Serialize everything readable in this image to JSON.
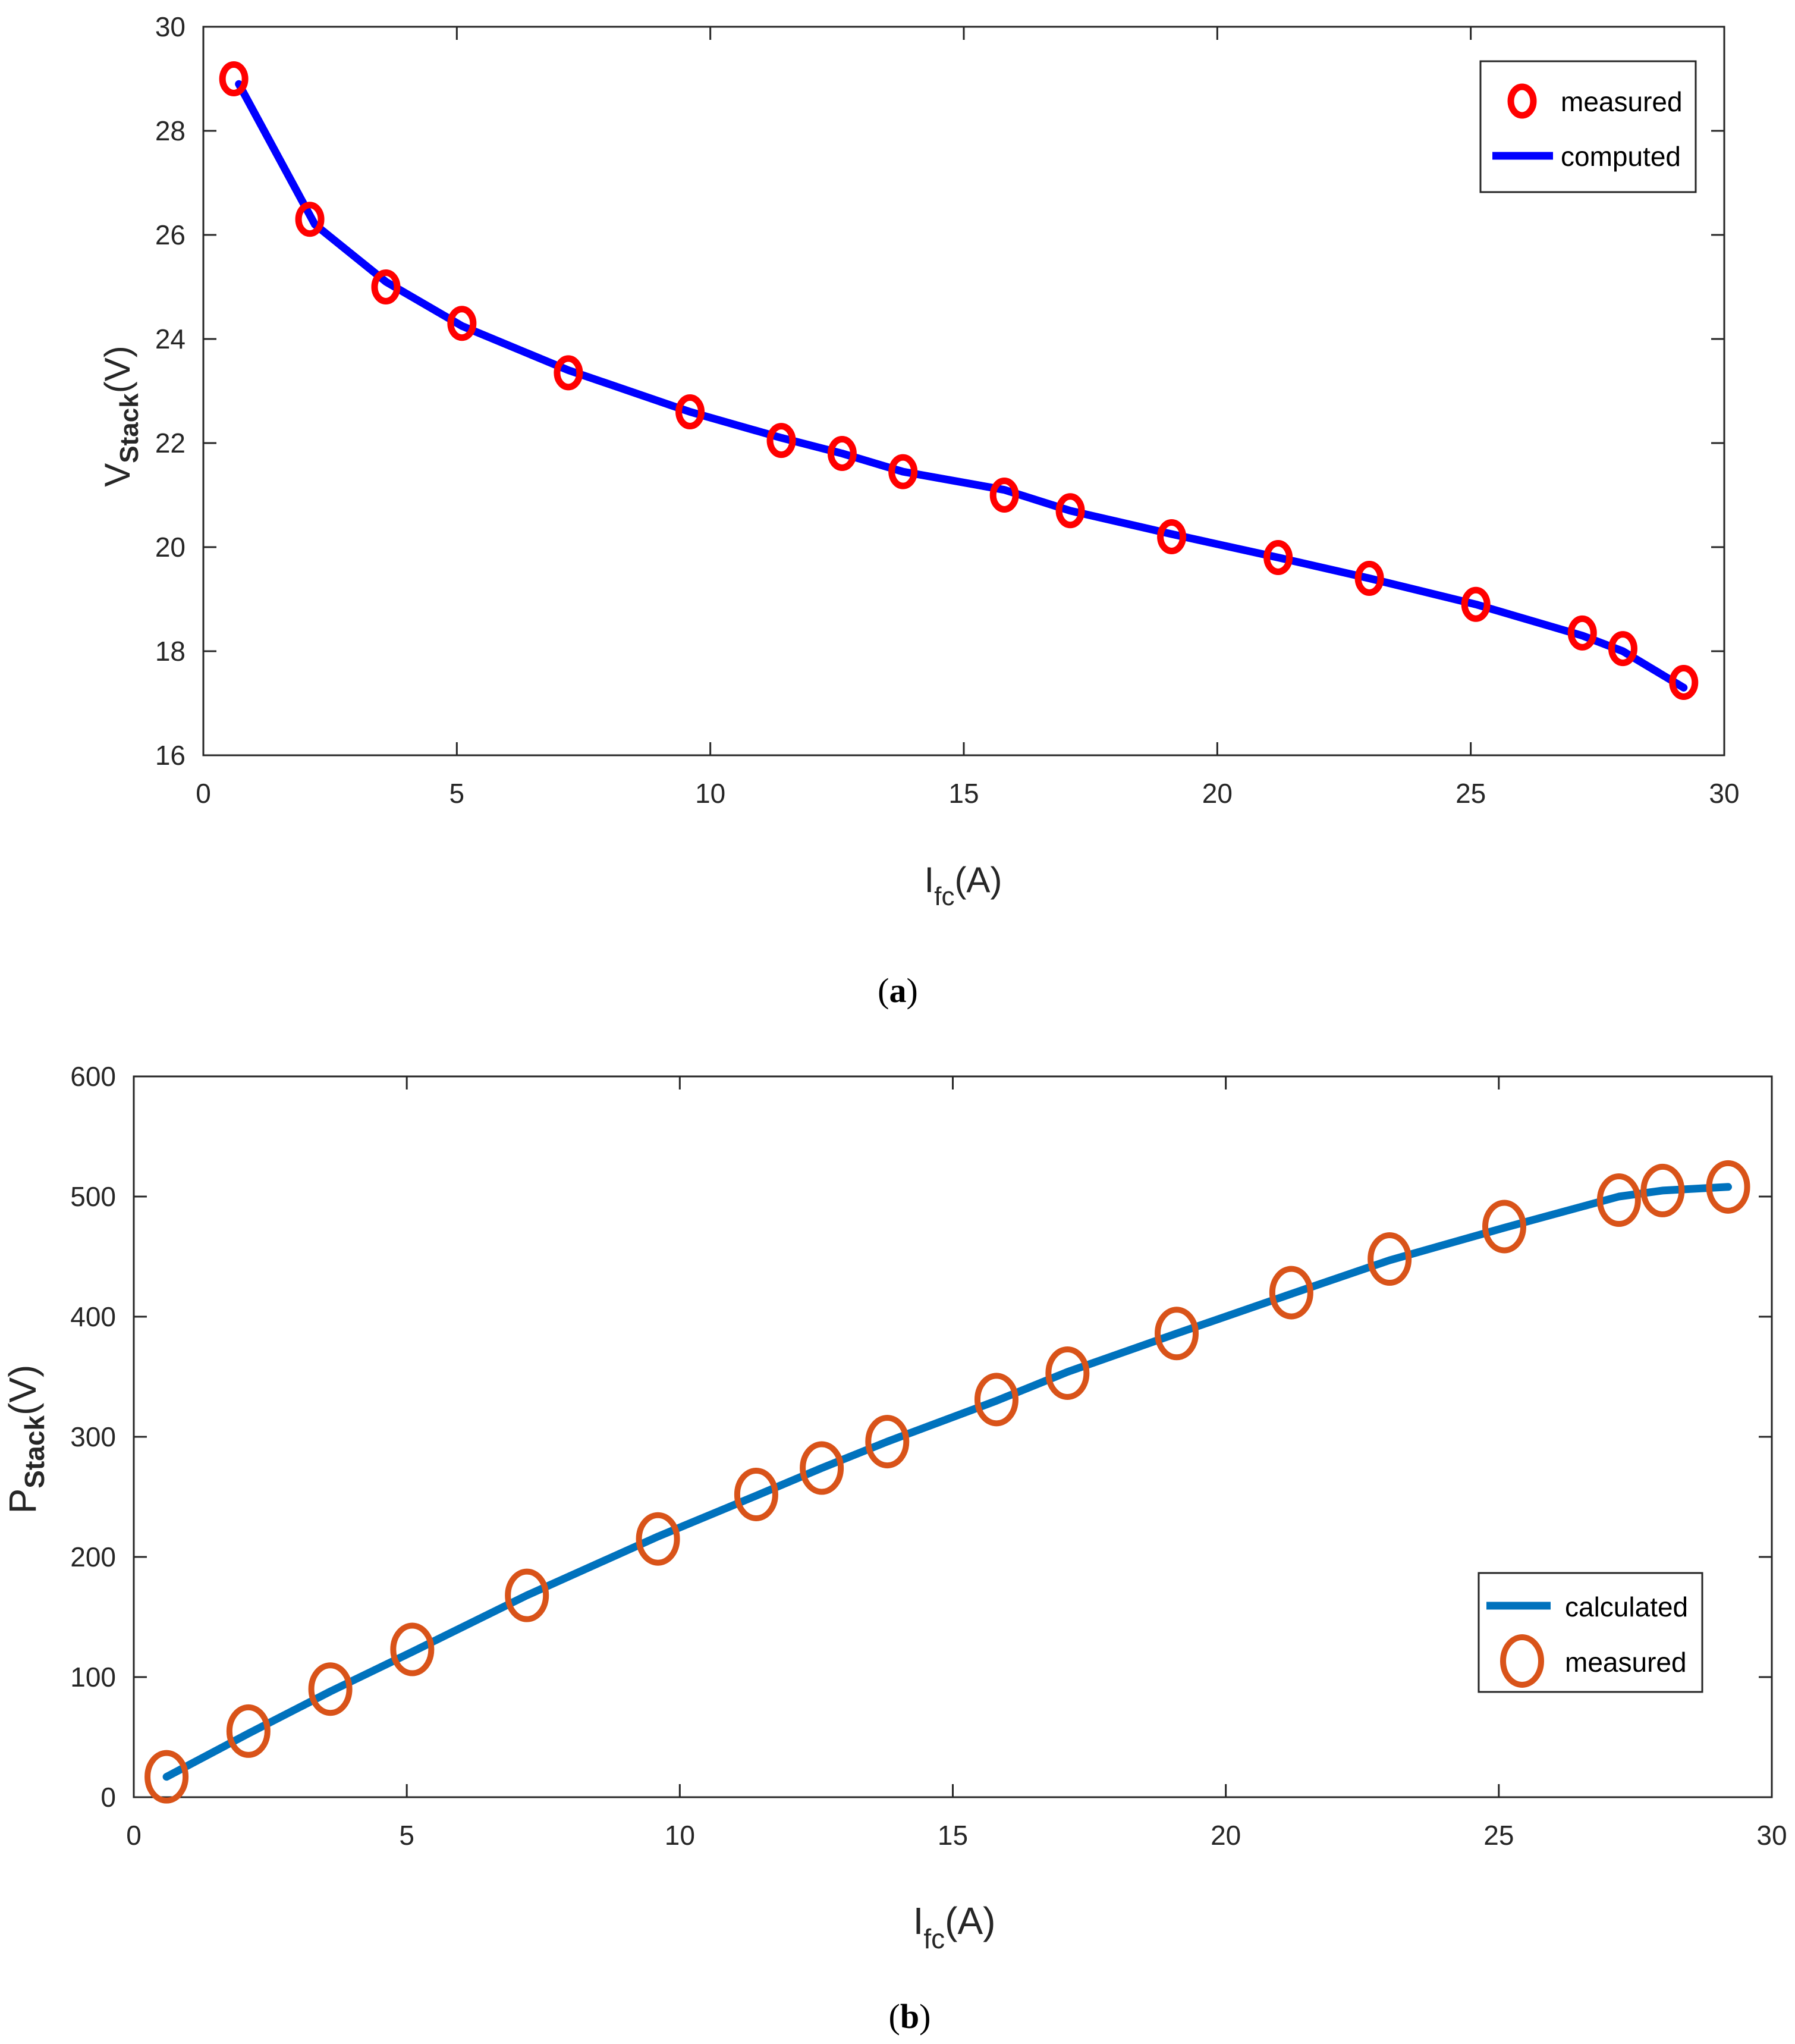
{
  "chart_data": [
    {
      "type": "line",
      "panel_label": {
        "open": "(",
        "letter": "a",
        "close": ")"
      },
      "title": "",
      "xlabel": {
        "main": "I",
        "sub": "fc",
        "unit": "(A)"
      },
      "ylabel": {
        "main": "V",
        "sub": "Stack",
        "unit": "(V)"
      },
      "xlim": [
        0,
        30
      ],
      "ylim": [
        16,
        30
      ],
      "xticks": [
        0,
        5,
        10,
        15,
        20,
        25,
        30
      ],
      "yticks": [
        16,
        18,
        20,
        22,
        24,
        26,
        28,
        30
      ],
      "grid": false,
      "legend_position": "top-right",
      "colors": {
        "measured": "#ff0000",
        "computed": "#0000ff"
      },
      "series": [
        {
          "name": "measured",
          "style": "markers",
          "x": [
            0.6,
            2.1,
            3.6,
            5.1,
            7.2,
            9.6,
            11.4,
            12.6,
            13.8,
            15.8,
            17.1,
            19.1,
            21.2,
            23.0,
            25.1,
            27.2,
            28.0,
            29.2
          ],
          "y": [
            29.0,
            26.3,
            25.0,
            24.3,
            23.35,
            22.6,
            22.05,
            21.8,
            21.45,
            21.0,
            20.7,
            20.2,
            19.8,
            19.4,
            18.9,
            18.35,
            18.05,
            17.4
          ]
        },
        {
          "name": "computed",
          "style": "line",
          "x": [
            0.7,
            2.2,
            3.6,
            5.1,
            7.2,
            9.6,
            11.4,
            12.6,
            13.8,
            15.8,
            17.1,
            19.1,
            21.2,
            23.0,
            25.1,
            27.2,
            28.0,
            29.2
          ],
          "y": [
            28.9,
            26.2,
            25.1,
            24.25,
            23.4,
            22.6,
            22.1,
            21.8,
            21.45,
            21.1,
            20.7,
            20.25,
            19.8,
            19.4,
            18.9,
            18.3,
            18.0,
            17.3
          ]
        }
      ]
    },
    {
      "type": "line",
      "panel_label": {
        "open": "(",
        "letter": "b",
        "close": ")"
      },
      "title": "",
      "xlabel": {
        "main": "I",
        "sub": "fc",
        "unit": "(A)"
      },
      "ylabel": {
        "main": "P",
        "sub": "Stack",
        "unit": "(V)"
      },
      "xlim": [
        0,
        30
      ],
      "ylim": [
        0,
        600
      ],
      "xticks": [
        0,
        5,
        10,
        15,
        20,
        25,
        30
      ],
      "yticks": [
        0,
        100,
        200,
        300,
        400,
        500,
        600
      ],
      "grid": false,
      "legend_position": "bottom-right",
      "colors": {
        "calculated": "#0072bd",
        "measured": "#d95319"
      },
      "series": [
        {
          "name": "calculated",
          "style": "line",
          "x": [
            0.6,
            2.1,
            3.6,
            5.1,
            7.2,
            9.6,
            11.4,
            12.6,
            13.8,
            15.8,
            17.1,
            19.1,
            21.2,
            23.0,
            25.1,
            27.2,
            28.0,
            29.2
          ],
          "y": [
            17,
            53,
            88,
            121,
            168,
            217,
            251,
            274,
            296,
            330,
            354,
            386,
            419,
            447,
            474,
            500,
            505,
            508
          ]
        },
        {
          "name": "measured",
          "style": "markers",
          "x": [
            0.6,
            2.1,
            3.6,
            5.1,
            7.2,
            9.6,
            11.4,
            12.6,
            13.8,
            15.8,
            17.1,
            19.1,
            21.2,
            23.0,
            25.1,
            27.2,
            28.0,
            29.2
          ],
          "y": [
            17,
            55,
            90,
            123,
            168,
            215,
            252,
            274,
            296,
            331,
            353,
            386,
            420,
            448,
            475,
            497,
            505,
            508
          ]
        }
      ]
    }
  ]
}
